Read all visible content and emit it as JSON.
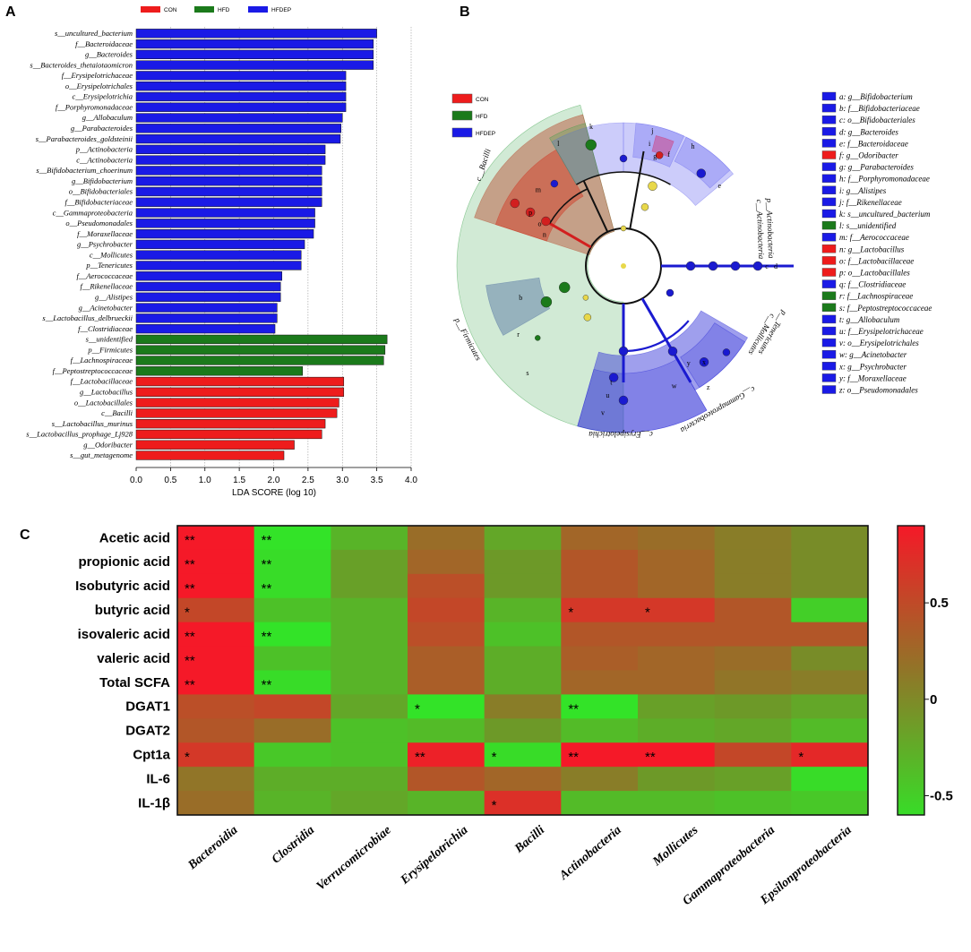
{
  "panels": {
    "a": "A",
    "b": "B",
    "c": "C"
  },
  "colors": {
    "CON": "#ee1c1c",
    "HFD": "#1b7a1b",
    "HFDEP": "#1a1ae6"
  },
  "chart_data": [
    {
      "type": "bar",
      "orientation": "horizontal",
      "title": "",
      "xlabel": "LDA SCORE (log 10)",
      "xlim": [
        0,
        4
      ],
      "xticks": [
        "0.0",
        "0.5",
        "1.0",
        "1.5",
        "2.0",
        "2.5",
        "3.0",
        "3.5",
        "4.0"
      ],
      "legend": [
        "CON",
        "HFD",
        "HFDEP"
      ],
      "bars": [
        {
          "label": "s__uncultured_bacterium",
          "value": 3.5,
          "group": "HFDEP"
        },
        {
          "label": "f__Bacteroidaceae",
          "value": 3.45,
          "group": "HFDEP"
        },
        {
          "label": "g__Bacteroides",
          "value": 3.45,
          "group": "HFDEP"
        },
        {
          "label": "s__Bacteroides_thetaiotaomicron",
          "value": 3.45,
          "group": "HFDEP"
        },
        {
          "label": "f__Erysipelotrichaceae",
          "value": 3.05,
          "group": "HFDEP"
        },
        {
          "label": "o__Erysipelotrichales",
          "value": 3.05,
          "group": "HFDEP"
        },
        {
          "label": "c__Erysipelotrichia",
          "value": 3.05,
          "group": "HFDEP"
        },
        {
          "label": "f__Porphyromonadaceae",
          "value": 3.05,
          "group": "HFDEP"
        },
        {
          "label": "g__Allobaculum",
          "value": 3.0,
          "group": "HFDEP"
        },
        {
          "label": "g__Parabacteroides",
          "value": 2.98,
          "group": "HFDEP"
        },
        {
          "label": "s__Parabacteroides_goldsteinii",
          "value": 2.97,
          "group": "HFDEP"
        },
        {
          "label": "p__Actinobacteria",
          "value": 2.75,
          "group": "HFDEP"
        },
        {
          "label": "c__Actinobacteria",
          "value": 2.75,
          "group": "HFDEP"
        },
        {
          "label": "s__Bifidobacterium_choerinum",
          "value": 2.7,
          "group": "HFDEP"
        },
        {
          "label": "g__Bifidobacterium",
          "value": 2.7,
          "group": "HFDEP"
        },
        {
          "label": "o__Bifidobacteriales",
          "value": 2.7,
          "group": "HFDEP"
        },
        {
          "label": "f__Bifidobacteriaceae",
          "value": 2.7,
          "group": "HFDEP"
        },
        {
          "label": "c__Gammaproteobacteria",
          "value": 2.6,
          "group": "HFDEP"
        },
        {
          "label": "o__Pseudomonadales",
          "value": 2.6,
          "group": "HFDEP"
        },
        {
          "label": "f__Moraxellaceae",
          "value": 2.58,
          "group": "HFDEP"
        },
        {
          "label": "g__Psychrobacter",
          "value": 2.45,
          "group": "HFDEP"
        },
        {
          "label": "c__Mollicutes",
          "value": 2.4,
          "group": "HFDEP"
        },
        {
          "label": "p__Tenericutes",
          "value": 2.4,
          "group": "HFDEP"
        },
        {
          "label": "f__Aerococcaceae",
          "value": 2.12,
          "group": "HFDEP"
        },
        {
          "label": "f__Rikenellaceae",
          "value": 2.1,
          "group": "HFDEP"
        },
        {
          "label": "g__Alistipes",
          "value": 2.1,
          "group": "HFDEP"
        },
        {
          "label": "g__Acinetobacter",
          "value": 2.05,
          "group": "HFDEP"
        },
        {
          "label": "s__Lactobacillus_delbrueckii",
          "value": 2.05,
          "group": "HFDEP"
        },
        {
          "label": "f__Clostridiaceae",
          "value": 2.02,
          "group": "HFDEP"
        },
        {
          "label": "s__unidentified",
          "value": 3.65,
          "group": "HFD"
        },
        {
          "label": "p__Firmicutes",
          "value": 3.62,
          "group": "HFD"
        },
        {
          "label": "f__Lachnospiraceae",
          "value": 3.6,
          "group": "HFD"
        },
        {
          "label": "f__Peptostreptococcaceae",
          "value": 2.42,
          "group": "HFD"
        },
        {
          "label": "f__Lactobacillaceae",
          "value": 3.02,
          "group": "CON"
        },
        {
          "label": "g__Lactobacillus",
          "value": 3.02,
          "group": "CON"
        },
        {
          "label": "o__Lactobacillales",
          "value": 2.95,
          "group": "CON"
        },
        {
          "label": "c__Bacilli",
          "value": 2.92,
          "group": "CON"
        },
        {
          "label": "s__Lactobacillus_murinus",
          "value": 2.75,
          "group": "CON"
        },
        {
          "label": "s__Lactobacillus_prophage_Lj928",
          "value": 2.7,
          "group": "CON"
        },
        {
          "label": "g__Odoribacter",
          "value": 2.3,
          "group": "CON"
        },
        {
          "label": "s__gut_metagenome",
          "value": 2.15,
          "group": "CON"
        }
      ]
    },
    {
      "type": "other",
      "subtype": "cladogram",
      "legend": [
        "CON",
        "HFD",
        "HFDEP"
      ],
      "key": [
        {
          "text": "a: g__Bifidobacterium",
          "group": "HFDEP"
        },
        {
          "text": "b: f__Bifidobacteriaceae",
          "group": "HFDEP"
        },
        {
          "text": "c: o__Bifidobacteriales",
          "group": "HFDEP"
        },
        {
          "text": "d: g__Bacteroides",
          "group": "HFDEP"
        },
        {
          "text": "e: f__Bacteroidaceae",
          "group": "HFDEP"
        },
        {
          "text": "f: g__Odoribacter",
          "group": "CON"
        },
        {
          "text": "g: g__Parabacteroides",
          "group": "HFDEP"
        },
        {
          "text": "h: f__Porphyromonadaceae",
          "group": "HFDEP"
        },
        {
          "text": "i: g__Alistipes",
          "group": "HFDEP"
        },
        {
          "text": "j: f__Rikenellaceae",
          "group": "HFDEP"
        },
        {
          "text": "k: s__uncultured_bacterium",
          "group": "HFDEP"
        },
        {
          "text": "l: s__unidentified",
          "group": "HFD"
        },
        {
          "text": "m: f__Aerococcaceae",
          "group": "HFDEP"
        },
        {
          "text": "n: g__Lactobacillus",
          "group": "CON"
        },
        {
          "text": "o: f__Lactobacillaceae",
          "group": "CON"
        },
        {
          "text": "p: o__Lactobacillales",
          "group": "CON"
        },
        {
          "text": "q: f__Clostridiaceae",
          "group": "HFDEP"
        },
        {
          "text": "r: f__Lachnospiraceae",
          "group": "HFD"
        },
        {
          "text": "s: f__Peptostreptococcaceae",
          "group": "HFD"
        },
        {
          "text": "t: g__Allobaculum",
          "group": "HFDEP"
        },
        {
          "text": "u: f__Erysipelotrichaceae",
          "group": "HFDEP"
        },
        {
          "text": "v: o__Erysipelotrichales",
          "group": "HFDEP"
        },
        {
          "text": "w: g__Acinetobacter",
          "group": "HFDEP"
        },
        {
          "text": "x: g__Psychrobacter",
          "group": "HFDEP"
        },
        {
          "text": "y: f__Moraxellaceae",
          "group": "HFDEP"
        },
        {
          "text": "z: o__Pseudomonadales",
          "group": "HFDEP"
        }
      ],
      "clades": [
        "c__Bacilli",
        "p__Firmicutes",
        "c__Erysipelotrichia",
        "c__Gammaproteobacteria",
        "p__Tenericutes",
        "c__Mollicutes",
        "p__Actinobacteria",
        "c__Actinobacteria"
      ]
    },
    {
      "type": "heatmap",
      "rows": [
        "Acetic acid",
        "propionic acid",
        "Isobutyric acid",
        "butyric acid",
        "isovaleric acid",
        "valeric acid",
        "Total SCFA",
        "DGAT1",
        "DGAT2",
        "Cpt1a",
        "IL-6",
        "IL-1β"
      ],
      "columns": [
        "Bacteroidia",
        "Clostridia",
        "Verrucomicrobiae",
        "Erysipelotrichia",
        "Bacilli",
        "Actinobacteria",
        "Mollicutes",
        "Gammaproteobacteria",
        "Epsilonproteobacteria"
      ],
      "values": [
        [
          0.85,
          -0.65,
          -0.3,
          0.2,
          -0.2,
          0.25,
          0.2,
          0.1,
          0.0
        ],
        [
          0.8,
          -0.6,
          -0.15,
          0.25,
          -0.1,
          0.35,
          0.25,
          0.1,
          0.0
        ],
        [
          0.8,
          -0.6,
          -0.15,
          0.4,
          -0.1,
          0.35,
          0.25,
          0.1,
          0.0
        ],
        [
          0.45,
          -0.4,
          -0.3,
          0.45,
          -0.3,
          0.55,
          0.55,
          0.35,
          -0.5
        ],
        [
          0.8,
          -0.65,
          -0.3,
          0.4,
          -0.4,
          0.35,
          0.35,
          0.35,
          0.35
        ],
        [
          0.8,
          -0.4,
          -0.3,
          0.3,
          -0.25,
          0.3,
          0.25,
          0.2,
          0.0
        ],
        [
          0.9,
          -0.6,
          -0.3,
          0.3,
          -0.25,
          0.25,
          0.25,
          0.15,
          0.1
        ],
        [
          0.4,
          0.45,
          -0.2,
          -0.65,
          0.1,
          -0.65,
          -0.15,
          -0.1,
          -0.2
        ],
        [
          0.35,
          0.2,
          -0.4,
          -0.35,
          -0.1,
          -0.35,
          -0.25,
          -0.2,
          -0.35
        ],
        [
          0.55,
          -0.45,
          -0.4,
          0.7,
          -0.6,
          0.85,
          0.75,
          0.45,
          0.65
        ],
        [
          0.15,
          -0.25,
          -0.25,
          0.35,
          0.25,
          0.1,
          -0.1,
          -0.15,
          -0.6
        ],
        [
          0.2,
          -0.3,
          -0.2,
          -0.3,
          0.6,
          -0.35,
          -0.35,
          -0.4,
          -0.45
        ]
      ],
      "significance": [
        [
          "**",
          "**",
          "",
          "",
          "",
          "",
          "",
          "",
          ""
        ],
        [
          "**",
          "**",
          "",
          "",
          "",
          "",
          "",
          "",
          ""
        ],
        [
          "**",
          "**",
          "",
          "",
          "",
          "",
          "",
          "",
          ""
        ],
        [
          "*",
          "",
          "",
          "",
          "",
          "*",
          "*",
          "",
          ""
        ],
        [
          "**",
          "**",
          "",
          "",
          "",
          "",
          "",
          "",
          ""
        ],
        [
          "**",
          "",
          "",
          "",
          "",
          "",
          "",
          "",
          ""
        ],
        [
          "**",
          "**",
          "",
          "",
          "",
          "",
          "",
          "",
          ""
        ],
        [
          "",
          "",
          "",
          "*",
          "",
          "**",
          "",
          "",
          ""
        ],
        [
          "",
          "",
          "",
          "",
          "",
          "",
          "",
          "",
          ""
        ],
        [
          "*",
          "",
          "",
          "**",
          "*",
          "**",
          "**",
          "",
          "*"
        ],
        [
          "",
          "",
          "",
          "",
          "",
          "",
          "",
          "",
          ""
        ],
        [
          "",
          "",
          "",
          "",
          "*",
          "",
          "",
          "",
          ""
        ]
      ],
      "colorbar": {
        "min": -0.6,
        "max": 0.9,
        "ticks": [
          "0.5",
          "0",
          "-0.5"
        ],
        "tick_values": [
          0.5,
          0,
          -0.5
        ]
      }
    }
  ]
}
